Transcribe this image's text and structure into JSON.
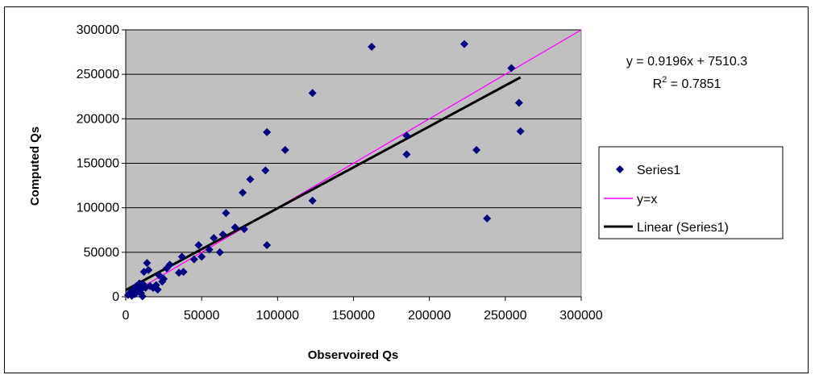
{
  "chart_data": {
    "type": "scatter",
    "title": "",
    "xlabel": "Observoired Qs",
    "ylabel": "Computed Qs",
    "xlim": [
      0,
      300000
    ],
    "ylim": [
      0,
      300000
    ],
    "x_ticks": [
      0,
      50000,
      100000,
      150000,
      200000,
      250000,
      300000
    ],
    "y_ticks": [
      0,
      50000,
      100000,
      150000,
      200000,
      250000,
      300000
    ],
    "x_tick_labels": [
      "0",
      "50000",
      "100000",
      "150000",
      "200000",
      "250000",
      "300000"
    ],
    "y_tick_labels": [
      "0",
      "50000",
      "100000",
      "150000",
      "200000",
      "250000",
      "300000"
    ],
    "grid": "horizontal",
    "plot_background": "#c0c0c0",
    "legend_position": "right",
    "annotation": {
      "equation": "y = 0.9196x + 7510.3",
      "r2_label": "R",
      "r2_sup": "2",
      "r2_value": " = 0.7851"
    },
    "series": [
      {
        "name": "Series1",
        "kind": "marker",
        "marker": "diamond",
        "color": "#000080",
        "points": [
          [
            1500,
            2000
          ],
          [
            3000,
            5000
          ],
          [
            4000,
            1000
          ],
          [
            5000,
            8000
          ],
          [
            6000,
            3000
          ],
          [
            7000,
            12000
          ],
          [
            8000,
            6000
          ],
          [
            9000,
            15000
          ],
          [
            10000,
            4000
          ],
          [
            10500,
            9000
          ],
          [
            11000,
            500
          ],
          [
            11500,
            14000
          ],
          [
            12000,
            28000
          ],
          [
            13000,
            10000
          ],
          [
            14000,
            38000
          ],
          [
            15000,
            30000
          ],
          [
            16000,
            12000
          ],
          [
            18000,
            10000
          ],
          [
            20000,
            13000
          ],
          [
            21000,
            8000
          ],
          [
            22000,
            24000
          ],
          [
            24000,
            17000
          ],
          [
            25000,
            20000
          ],
          [
            27000,
            32000
          ],
          [
            29000,
            36000
          ],
          [
            35000,
            27000
          ],
          [
            37000,
            45000
          ],
          [
            38000,
            28000
          ],
          [
            45000,
            42000
          ],
          [
            48000,
            58000
          ],
          [
            50000,
            45000
          ],
          [
            55000,
            53000
          ],
          [
            58000,
            66000
          ],
          [
            62000,
            50000
          ],
          [
            64000,
            70000
          ],
          [
            66000,
            94000
          ],
          [
            72000,
            78000
          ],
          [
            77000,
            117000
          ],
          [
            78000,
            76000
          ],
          [
            82000,
            132000
          ],
          [
            92000,
            142000
          ],
          [
            93000,
            185000
          ],
          [
            93000,
            58000
          ],
          [
            105000,
            165000
          ],
          [
            123000,
            229000
          ],
          [
            123000,
            108000
          ],
          [
            162000,
            281000
          ],
          [
            185000,
            181000
          ],
          [
            185000,
            160000
          ],
          [
            223000,
            284000
          ],
          [
            231000,
            165000
          ],
          [
            238000,
            88000
          ],
          [
            254000,
            257000
          ],
          [
            259000,
            218000
          ],
          [
            260000,
            186000
          ]
        ]
      },
      {
        "name": "y=x",
        "kind": "line",
        "color": "#ff00ff",
        "points": [
          [
            0,
            0
          ],
          [
            300000,
            300000
          ]
        ]
      },
      {
        "name": "Linear (Series1)",
        "kind": "line",
        "color": "#000000",
        "points": [
          [
            0,
            7510.3
          ],
          [
            260000,
            246606.3
          ]
        ]
      }
    ]
  }
}
